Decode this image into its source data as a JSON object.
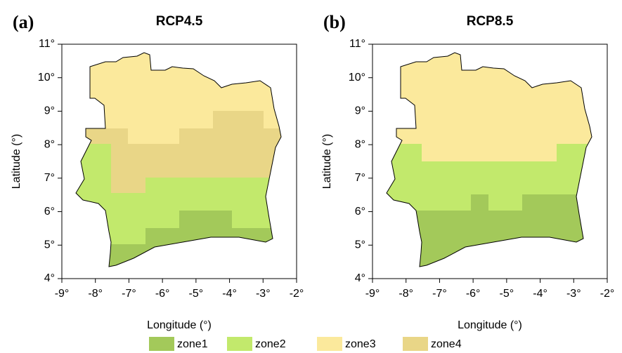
{
  "panels": [
    {
      "label": "(a)",
      "title": "RCP4.5"
    },
    {
      "label": "(b)",
      "title": "RCP8.5"
    }
  ],
  "xlim": [
    -9,
    -2
  ],
  "ylim": [
    4,
    11
  ],
  "xticks": [
    {
      "value": -9,
      "label": "-9°"
    },
    {
      "value": -8,
      "label": "-8°"
    },
    {
      "value": -7,
      "label": "-7°"
    },
    {
      "value": -6,
      "label": "-6°"
    },
    {
      "value": -5,
      "label": "-5°"
    },
    {
      "value": -4,
      "label": "-4°"
    },
    {
      "value": -3,
      "label": "-3°"
    },
    {
      "value": -2,
      "label": "-2°"
    }
  ],
  "yticks": [
    {
      "value": 4,
      "label": "4°"
    },
    {
      "value": 5,
      "label": "5°"
    },
    {
      "value": 6,
      "label": "6°"
    },
    {
      "value": 7,
      "label": "7°"
    },
    {
      "value": 8,
      "label": "8°"
    },
    {
      "value": 9,
      "label": "9°"
    },
    {
      "value": 10,
      "label": "10°"
    },
    {
      "value": 11,
      "label": "11°"
    }
  ],
  "xlabel": "Longitude (°)",
  "ylabel": "Latitude (°)",
  "legend": [
    {
      "name": "zone1",
      "color": "#a3c95a"
    },
    {
      "name": "zone2",
      "color": "#c2e96c"
    },
    {
      "name": "zone3",
      "color": "#fbe99c"
    },
    {
      "name": "zone4",
      "color": "#e9d687"
    }
  ]
}
